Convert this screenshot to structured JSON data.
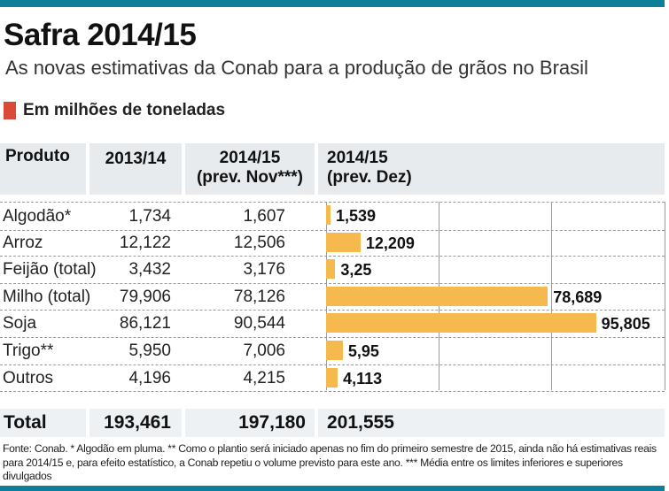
{
  "header": {
    "title": "Safra 2014/15",
    "subtitle": "As novas estimativas da Conab para a produção de grãos no Brasil",
    "unit_label": "Em milhões de toneladas"
  },
  "colors": {
    "accent_bar": "#0e7f98",
    "unit_marker": "#d94a38",
    "bar_fill": "#f5b94d",
    "header_bg": "#e8ebee"
  },
  "table": {
    "columns": [
      "Produto",
      "2013/14",
      "2014/15",
      "(prev. Nov***)",
      "2014/15",
      "(prev. Dez)"
    ],
    "col_produto": "Produto",
    "col_2013": "2013/14",
    "col_nov_l1": "2014/15",
    "col_nov_l2": "(prev. Nov***)",
    "col_dez_l1": "2014/15",
    "col_dez_l2": "(prev. Dez)",
    "rows": [
      {
        "produto": "Algodão*",
        "y2013": "1,734",
        "nov": "1,607",
        "dez": "1,539"
      },
      {
        "produto": "Arroz",
        "y2013": "12,122",
        "nov": "12,506",
        "dez": "12,209"
      },
      {
        "produto": "Feijão (total)",
        "y2013": "3,432",
        "nov": "3,176",
        "dez": "3,25"
      },
      {
        "produto": "Milho (total)",
        "y2013": "79,906",
        "nov": "78,126",
        "dez": "78,689"
      },
      {
        "produto": "Soja",
        "y2013": "86,121",
        "nov": "90,544",
        "dez": "95,805"
      },
      {
        "produto": "Trigo**",
        "y2013": "5,950",
        "nov": "7,006",
        "dez": "5,95"
      },
      {
        "produto": "Outros",
        "y2013": "4,196",
        "nov": "4,215",
        "dez": "4,113"
      }
    ],
    "total": {
      "label": "Total",
      "y2013": "193,461",
      "nov": "197,180",
      "dez": "201,555"
    }
  },
  "footer": {
    "note": "Fonte: Conab. * Algodão em pluma. ** Como o plantio será iniciado apenas no fim do primeiro semestre de 2015, ainda não há estimativas reais para 2014/15 e, para efeito estatístico, a Conab repetiu o volume previsto para este ano. *** Média entre os limites inferiores e superiores divulgados"
  },
  "chart_data": {
    "type": "bar",
    "orientation": "horizontal",
    "title": "2014/15 (prev. Dez)",
    "xlabel": "",
    "ylabel": "",
    "unit": "milhões de toneladas",
    "categories": [
      "Algodão*",
      "Arroz",
      "Feijão (total)",
      "Milho (total)",
      "Soja",
      "Trigo**",
      "Outros"
    ],
    "values": [
      1.539,
      12.209,
      3.25,
      78.689,
      95.805,
      5.95,
      4.113
    ],
    "labels": [
      "1,539",
      "12,209",
      "3,25",
      "78,689",
      "95,805",
      "5,95",
      "4,113"
    ],
    "xlim": [
      0,
      120
    ],
    "gridlines": [
      0,
      40,
      80,
      120
    ],
    "grid": true,
    "legend": "none"
  }
}
